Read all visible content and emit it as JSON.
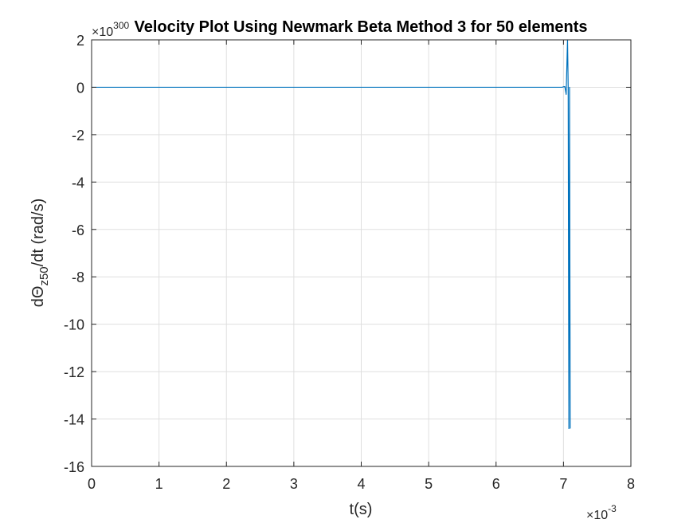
{
  "chart_data": {
    "type": "line",
    "title": "Velocity Plot Using Newmark Beta Method 3 for 50 elements",
    "xlabel": "t(s)",
    "ylabel": {
      "prefix": "dΘ",
      "subscript": "z50",
      "suffix": "/dt  (rad/s)"
    },
    "x_multiplier": {
      "base": "×10",
      "exponent": "-3"
    },
    "y_multiplier": {
      "base": "×10",
      "exponent": "300"
    },
    "xlim": [
      0,
      8
    ],
    "ylim": [
      -16,
      2
    ],
    "xticks": [
      0,
      1,
      2,
      3,
      4,
      5,
      6,
      7,
      8
    ],
    "yticks": [
      -16,
      -14,
      -12,
      -10,
      -8,
      -6,
      -4,
      -2,
      0,
      2
    ],
    "grid": true,
    "series": [
      {
        "color": "#0072BD",
        "x": [
          0,
          1,
          2,
          3,
          4,
          5,
          6,
          6.98,
          7.0,
          7.02,
          7.04,
          7.06,
          7.07,
          7.08,
          7.09,
          7.1
        ],
        "y": [
          0,
          0,
          0,
          0,
          0,
          0,
          0,
          0,
          0.02,
          0.03,
          -0.3,
          2.0,
          0.0,
          -14.4,
          0.0,
          -14.4
        ]
      }
    ]
  }
}
